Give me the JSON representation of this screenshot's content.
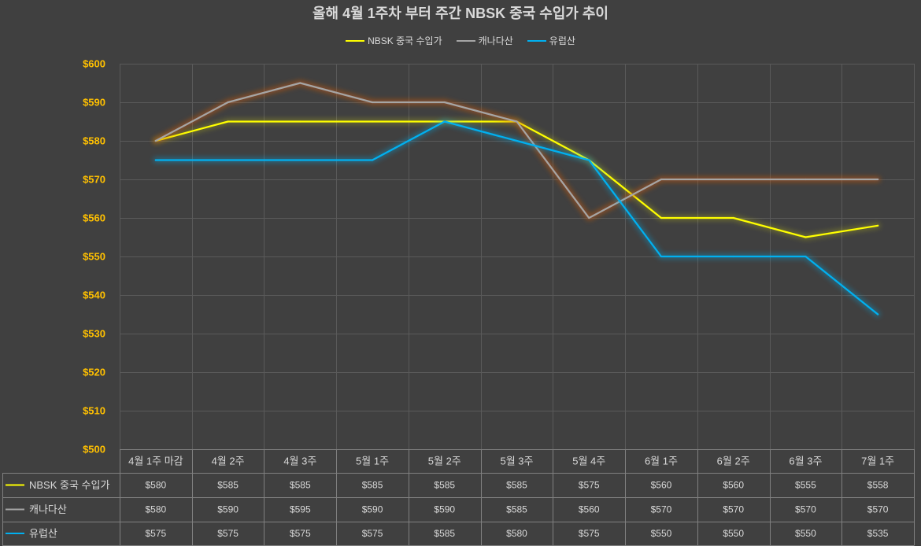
{
  "chart_data": {
    "type": "line",
    "title": "올해 4월 1주차 부터 주간 NBSK 중국 수입가 추이",
    "legend": "top",
    "grid": true,
    "value_prefix": "$",
    "categories": [
      "4월 1주 마감",
      "4월 2주",
      "4월 3주",
      "5월 1주",
      "5월 2주",
      "5월 3주",
      "5월 4주",
      "6월 1주",
      "6월 2주",
      "6월 3주",
      "7월 1주"
    ],
    "ylim": [
      500,
      600
    ],
    "yticks": [
      600,
      590,
      580,
      570,
      560,
      550,
      540,
      530,
      520,
      510,
      500
    ],
    "colors": {
      "background": "#404040",
      "tick_label": "#ffc000",
      "text": "#d9d9d9",
      "gridline": "#5a5a5a",
      "table_border": "#808080"
    },
    "series": [
      {
        "name": "NBSK 중국 수입가",
        "color": "#ffff00",
        "glow": "#ffff00",
        "values": [
          580,
          585,
          585,
          585,
          585,
          585,
          575,
          560,
          560,
          555,
          558
        ]
      },
      {
        "name": "캐나다산",
        "color": "#a5a5a5",
        "glow": "#c65911",
        "values": [
          580,
          590,
          595,
          590,
          590,
          585,
          560,
          570,
          570,
          570,
          570
        ]
      },
      {
        "name": "유럽산",
        "color": "#00b0f0",
        "glow": "#00b0f0",
        "values": [
          575,
          575,
          575,
          575,
          585,
          580,
          575,
          550,
          550,
          550,
          535
        ]
      }
    ]
  }
}
